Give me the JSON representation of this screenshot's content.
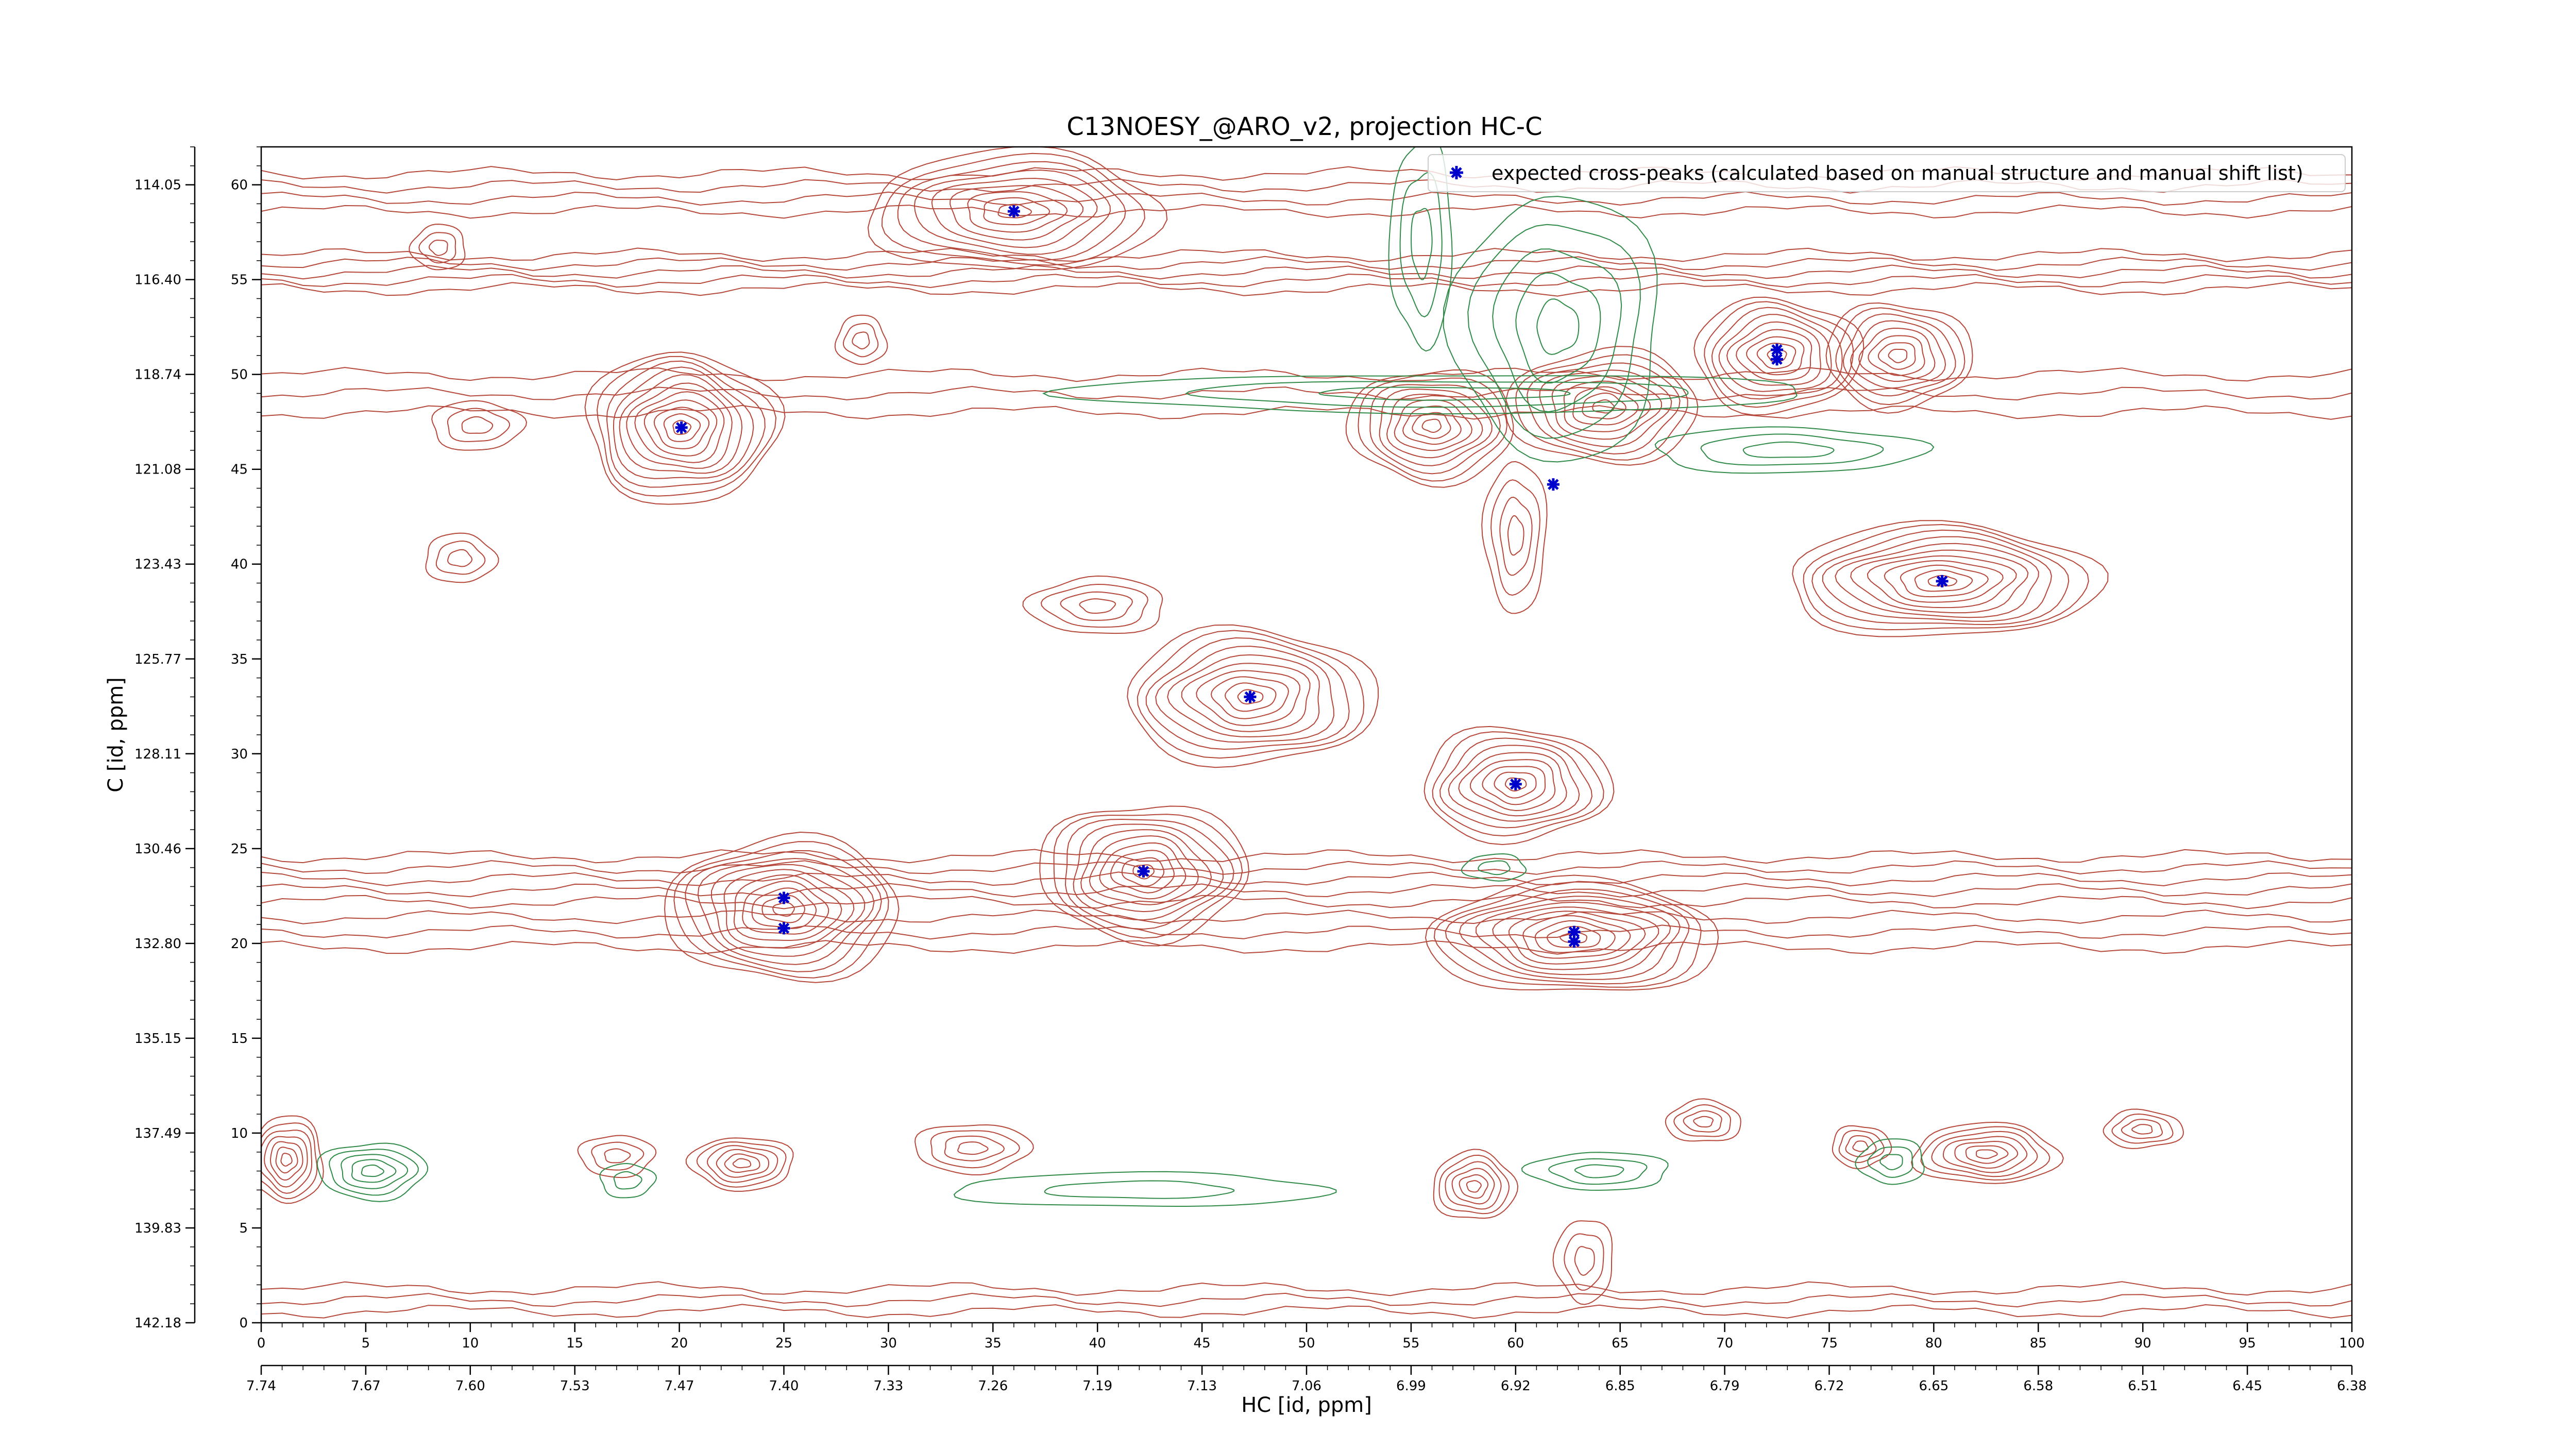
{
  "chart_data": {
    "type": "contour",
    "title": "C13NOESY_@ARO_v2, projection HC-C",
    "xlabel": "HC [id, ppm]",
    "ylabel": "C [id, ppm]",
    "xlim": [
      0,
      100
    ],
    "ylim": [
      0,
      62
    ],
    "x_index_ticks": [
      "0",
      "5",
      "10",
      "15",
      "20",
      "25",
      "30",
      "35",
      "40",
      "45",
      "50",
      "55",
      "60",
      "65",
      "70",
      "75",
      "80",
      "85",
      "90",
      "95",
      "100"
    ],
    "x_ppm_ticks": [
      "7.74",
      "7.67",
      "7.60",
      "7.53",
      "7.47",
      "7.40",
      "7.33",
      "7.26",
      "7.19",
      "7.13",
      "7.06",
      "6.99",
      "6.92",
      "6.85",
      "6.79",
      "6.72",
      "6.65",
      "6.58",
      "6.51",
      "6.45",
      "6.38"
    ],
    "y_index_ticks": [
      "0",
      "5",
      "10",
      "15",
      "20",
      "25",
      "30",
      "35",
      "40",
      "45",
      "50",
      "55",
      "60"
    ],
    "y_ppm_ticks": [
      "142.18",
      "139.83",
      "137.49",
      "135.15",
      "132.80",
      "130.46",
      "128.11",
      "125.77",
      "123.43",
      "121.08",
      "118.74",
      "116.40",
      "114.05"
    ],
    "legend": {
      "label": "expected cross-peaks (calculated based on manual structure and manual shift list)",
      "placement": "top-right"
    },
    "colors": {
      "positive_contour": "#b5483a",
      "negative_contour": "#2f8a47",
      "marker": "#0000cc"
    },
    "expected_peaks": [
      {
        "x": 36.0,
        "y": 58.6
      },
      {
        "x": 20.1,
        "y": 47.2
      },
      {
        "x": 72.5,
        "y": 51.3
      },
      {
        "x": 72.5,
        "y": 50.8
      },
      {
        "x": 61.8,
        "y": 44.2
      },
      {
        "x": 80.4,
        "y": 39.1
      },
      {
        "x": 47.3,
        "y": 33.0
      },
      {
        "x": 60.0,
        "y": 28.4
      },
      {
        "x": 42.2,
        "y": 23.8
      },
      {
        "x": 25.0,
        "y": 22.4
      },
      {
        "x": 25.0,
        "y": 20.8
      },
      {
        "x": 62.8,
        "y": 20.6
      },
      {
        "x": 62.8,
        "y": 20.1
      }
    ],
    "positive_peaks": [
      {
        "x": 36.0,
        "y": 58.6,
        "rx": 7.0,
        "ry": 3.2,
        "levels": 9
      },
      {
        "x": 20.1,
        "y": 47.2,
        "rx": 4.6,
        "ry": 4.0,
        "levels": 11
      },
      {
        "x": 72.5,
        "y": 51.0,
        "rx": 4.0,
        "ry": 3.0,
        "levels": 9
      },
      {
        "x": 78.3,
        "y": 51.0,
        "rx": 3.5,
        "ry": 2.8,
        "levels": 8
      },
      {
        "x": 56.0,
        "y": 47.3,
        "rx": 4.0,
        "ry": 3.0,
        "levels": 9
      },
      {
        "x": 64.2,
        "y": 48.3,
        "rx": 4.6,
        "ry": 3.0,
        "levels": 9
      },
      {
        "x": 80.4,
        "y": 39.1,
        "rx": 7.5,
        "ry": 3.0,
        "levels": 11
      },
      {
        "x": 47.3,
        "y": 33.0,
        "rx": 6.0,
        "ry": 3.6,
        "levels": 10
      },
      {
        "x": 60.0,
        "y": 28.4,
        "rx": 4.5,
        "ry": 3.0,
        "levels": 9
      },
      {
        "x": 42.2,
        "y": 23.8,
        "rx": 5.0,
        "ry": 3.6,
        "levels": 10
      },
      {
        "x": 25.0,
        "y": 21.8,
        "rx": 5.6,
        "ry": 3.8,
        "levels": 11
      },
      {
        "x": 62.8,
        "y": 20.3,
        "rx": 7.0,
        "ry": 3.0,
        "levels": 11
      },
      {
        "x": 23.0,
        "y": 8.4,
        "rx": 2.5,
        "ry": 1.4,
        "levels": 6
      },
      {
        "x": 1.2,
        "y": 8.6,
        "rx": 1.8,
        "ry": 2.3,
        "levels": 7
      },
      {
        "x": 82.5,
        "y": 8.9,
        "rx": 3.5,
        "ry": 1.6,
        "levels": 7
      },
      {
        "x": 58.0,
        "y": 7.2,
        "rx": 2.0,
        "ry": 1.8,
        "levels": 6
      },
      {
        "x": 69.0,
        "y": 10.6,
        "rx": 1.8,
        "ry": 1.1,
        "levels": 4
      },
      {
        "x": 90.0,
        "y": 10.2,
        "rx": 1.9,
        "ry": 1.0,
        "levels": 4
      },
      {
        "x": 76.5,
        "y": 9.3,
        "rx": 1.4,
        "ry": 1.1,
        "levels": 4
      },
      {
        "x": 34.0,
        "y": 9.2,
        "rx": 2.8,
        "ry": 1.3,
        "levels": 4
      },
      {
        "x": 17.0,
        "y": 8.8,
        "rx": 1.8,
        "ry": 1.1,
        "levels": 3
      },
      {
        "x": 40.0,
        "y": 37.8,
        "rx": 3.3,
        "ry": 1.5,
        "levels": 4
      },
      {
        "x": 8.5,
        "y": 56.7,
        "rx": 1.3,
        "ry": 1.2,
        "levels": 3
      },
      {
        "x": 28.7,
        "y": 51.8,
        "rx": 1.2,
        "ry": 1.3,
        "levels": 3
      },
      {
        "x": 9.5,
        "y": 40.3,
        "rx": 1.7,
        "ry": 1.3,
        "levels": 3
      },
      {
        "x": 10.3,
        "y": 47.3,
        "rx": 2.2,
        "ry": 1.3,
        "levels": 3
      },
      {
        "x": 60.0,
        "y": 41.5,
        "rx": 1.5,
        "ry": 4.0,
        "levels": 4
      },
      {
        "x": 63.3,
        "y": 3.3,
        "rx": 1.4,
        "ry": 2.2,
        "levels": 3
      }
    ],
    "negative_peaks": [
      {
        "x": 5.3,
        "y": 8.0,
        "rx": 2.6,
        "ry": 1.5,
        "levels": 5
      },
      {
        "x": 17.5,
        "y": 7.5,
        "rx": 1.3,
        "ry": 0.9,
        "levels": 2
      },
      {
        "x": 64.0,
        "y": 8.0,
        "rx": 3.4,
        "ry": 1.0,
        "levels": 3
      },
      {
        "x": 78.0,
        "y": 8.5,
        "rx": 1.6,
        "ry": 1.2,
        "levels": 3
      },
      {
        "x": 59.0,
        "y": 24.0,
        "rx": 1.5,
        "ry": 0.7,
        "levels": 2
      },
      {
        "x": 42.0,
        "y": 7.0,
        "rx": 9.0,
        "ry": 0.9,
        "levels": 2
      },
      {
        "x": 73.0,
        "y": 46.0,
        "rx": 6.5,
        "ry": 1.2,
        "levels": 3
      },
      {
        "x": 62.0,
        "y": 52.5,
        "rx": 5.0,
        "ry": 7.0,
        "levels": 5
      },
      {
        "x": 56.5,
        "y": 49.0,
        "rx": 18.0,
        "ry": 1.0,
        "levels": 3
      },
      {
        "x": 55.5,
        "y": 57.0,
        "rx": 1.5,
        "ry": 5.5,
        "levels": 3
      }
    ],
    "positive_bands": [
      {
        "y": 59.6,
        "half": 1.0,
        "lines": 4
      },
      {
        "y": 55.4,
        "half": 0.9,
        "lines": 5
      },
      {
        "y": 49.0,
        "half": 1.0,
        "lines": 3
      },
      {
        "y": 23.4,
        "half": 1.2,
        "lines": 5
      },
      {
        "y": 20.6,
        "half": 0.8,
        "lines": 3
      },
      {
        "y": 1.2,
        "half": 0.6,
        "lines": 3
      }
    ]
  }
}
